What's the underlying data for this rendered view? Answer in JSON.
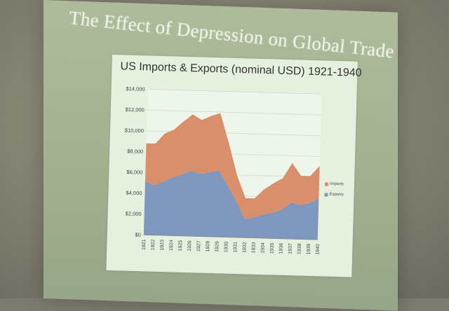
{
  "slide": {
    "title": "The Effect of Depression on Global Trade"
  },
  "chart_data": {
    "type": "area",
    "stacked": true,
    "title": "US Imports & Exports (nominal USD) 1921-1940",
    "xlabel": "",
    "ylabel": "",
    "x": [
      "1921",
      "1922",
      "1923",
      "1924",
      "1925",
      "1926",
      "1927",
      "1928",
      "1929",
      "1930",
      "1931",
      "1932",
      "1933",
      "1934",
      "1935",
      "1936",
      "1937",
      "1938",
      "1939",
      "1940"
    ],
    "ylim": [
      0,
      14000
    ],
    "yticks": [
      0,
      2000,
      4000,
      6000,
      8000,
      10000,
      12000,
      14000
    ],
    "ytick_labels": [
      "$0",
      "$2,000",
      "$4,000",
      "$6,000",
      "$8,000",
      "$10,000",
      "$12,000",
      "$14,000"
    ],
    "grid": true,
    "legend_position": "right",
    "series": [
      {
        "name": "Exports",
        "color": "#7f96bd",
        "values": [
          5200,
          4800,
          5200,
          5600,
          5900,
          6300,
          6000,
          6200,
          6400,
          5000,
          3500,
          1800,
          2000,
          2300,
          2500,
          2800,
          3500,
          3300,
          3500,
          4000
        ]
      },
      {
        "name": "Imports",
        "color": "#d98f6b",
        "values": [
          3600,
          4000,
          4600,
          4600,
          5100,
          5400,
          5200,
          5400,
          5500,
          4100,
          2500,
          2000,
          1800,
          2400,
          2800,
          3000,
          3800,
          2800,
          2600,
          3100
        ]
      }
    ]
  }
}
